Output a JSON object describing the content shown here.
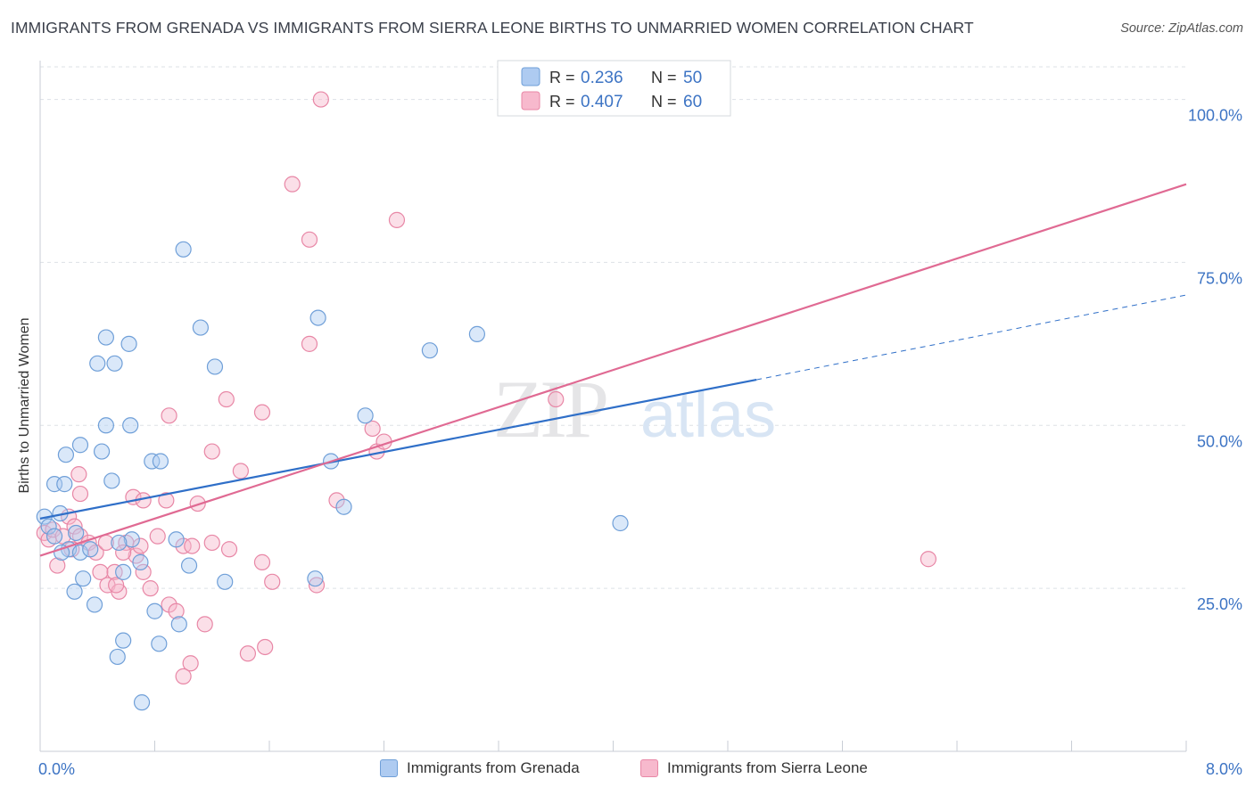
{
  "header": {
    "title": "IMMIGRANTS FROM GRENADA VS IMMIGRANTS FROM SIERRA LEONE BIRTHS TO UNMARRIED WOMEN CORRELATION CHART",
    "source": "Source: ZipAtlas.com"
  },
  "watermark": {
    "zip": "ZIP",
    "atlas": "atlas"
  },
  "colors": {
    "blue_fill": "#aecbf1",
    "blue_stroke": "#6f9fd8",
    "blue_line": "#2f6fc8",
    "pink_fill": "#f7b9cd",
    "pink_stroke": "#e887a6",
    "pink_line": "#e06a93",
    "tick_label": "#3d74c4",
    "grid": "#dde1e6"
  },
  "legend_top": [
    {
      "r_label": "R =",
      "r_value": "0.236",
      "n_label": "N =",
      "n_value": "50"
    },
    {
      "r_label": "R =",
      "r_value": "0.407",
      "n_label": "N =",
      "n_value": "60"
    }
  ],
  "chart_data": {
    "type": "scatter",
    "title": "IMMIGRANTS FROM GRENADA VS IMMIGRANTS FROM SIERRA LEONE BIRTHS TO UNMARRIED WOMEN CORRELATION CHART",
    "xlabel": "",
    "ylabel": "Births to Unmarried Women",
    "xlim": [
      0,
      8
    ],
    "ylim": [
      0,
      105
    ],
    "x_tick_labels": [
      "0.0%",
      "8.0%"
    ],
    "y_ticks": [
      25,
      50,
      75,
      100
    ],
    "y_tick_labels": [
      "25.0%",
      "50.0%",
      "75.0%",
      "100.0%"
    ],
    "grid": true,
    "legend_position": "bottom",
    "series": [
      {
        "name": "Immigrants from Grenada",
        "color": "#aecbf1",
        "trend": {
          "x_start": 0.0,
          "y_start": 35.7,
          "x_solid_end": 5.0,
          "y_solid_end": 57.0,
          "x_dash_end": 8.0,
          "y_dash_end": 70.0
        },
        "points": [
          [
            0.03,
            36.0
          ],
          [
            0.06,
            34.5
          ],
          [
            0.1,
            33.0
          ],
          [
            0.14,
            36.5
          ],
          [
            0.2,
            31.0
          ],
          [
            0.25,
            33.5
          ],
          [
            0.28,
            30.5
          ],
          [
            0.35,
            31.0
          ],
          [
            0.15,
            30.5
          ],
          [
            0.3,
            26.5
          ],
          [
            0.24,
            24.5
          ],
          [
            0.38,
            22.5
          ],
          [
            0.58,
            27.5
          ],
          [
            0.7,
            29.0
          ],
          [
            1.04,
            28.5
          ],
          [
            0.8,
            21.5
          ],
          [
            0.97,
            19.5
          ],
          [
            0.58,
            17.0
          ],
          [
            0.83,
            16.5
          ],
          [
            0.54,
            14.5
          ],
          [
            0.71,
            7.5
          ],
          [
            0.1,
            41.0
          ],
          [
            0.17,
            41.0
          ],
          [
            0.5,
            41.5
          ],
          [
            0.18,
            45.5
          ],
          [
            0.28,
            47.0
          ],
          [
            0.43,
            46.0
          ],
          [
            0.46,
            50.0
          ],
          [
            0.63,
            50.0
          ],
          [
            0.78,
            44.5
          ],
          [
            0.84,
            44.5
          ],
          [
            0.4,
            59.5
          ],
          [
            0.52,
            59.5
          ],
          [
            0.62,
            62.5
          ],
          [
            0.46,
            63.5
          ],
          [
            1.12,
            65.0
          ],
          [
            1.22,
            59.0
          ],
          [
            1.0,
            77.0
          ],
          [
            1.94,
            66.5
          ],
          [
            2.27,
            51.5
          ],
          [
            2.03,
            44.5
          ],
          [
            2.12,
            37.5
          ],
          [
            1.92,
            26.5
          ],
          [
            1.29,
            26.0
          ],
          [
            2.72,
            61.5
          ],
          [
            3.05,
            64.0
          ],
          [
            4.05,
            35.0
          ],
          [
            0.64,
            32.5
          ],
          [
            0.95,
            32.5
          ],
          [
            0.55,
            32.0
          ]
        ]
      },
      {
        "name": "Immigrants from Sierra Leone",
        "color": "#f7b9cd",
        "trend": {
          "x_start": 0.0,
          "y_start": 30.0,
          "x_end": 8.0,
          "y_end": 87.0
        },
        "points": [
          [
            0.03,
            33.5
          ],
          [
            0.06,
            32.5
          ],
          [
            0.09,
            34.0
          ],
          [
            0.12,
            28.5
          ],
          [
            0.16,
            33.0
          ],
          [
            0.2,
            36.0
          ],
          [
            0.24,
            34.5
          ],
          [
            0.28,
            33.0
          ],
          [
            0.22,
            31.0
          ],
          [
            0.34,
            32.0
          ],
          [
            0.39,
            30.5
          ],
          [
            0.42,
            27.5
          ],
          [
            0.47,
            25.5
          ],
          [
            0.52,
            27.5
          ],
          [
            0.55,
            24.5
          ],
          [
            0.53,
            25.5
          ],
          [
            0.6,
            32.0
          ],
          [
            0.67,
            30.0
          ],
          [
            0.72,
            27.5
          ],
          [
            0.77,
            25.0
          ],
          [
            0.82,
            33.0
          ],
          [
            0.9,
            22.5
          ],
          [
            0.95,
            21.5
          ],
          [
            1.0,
            31.5
          ],
          [
            1.06,
            31.5
          ],
          [
            1.1,
            38.0
          ],
          [
            1.15,
            19.5
          ],
          [
            1.2,
            32.0
          ],
          [
            1.32,
            31.0
          ],
          [
            1.55,
            29.0
          ],
          [
            1.62,
            26.0
          ],
          [
            1.2,
            46.0
          ],
          [
            1.05,
            13.5
          ],
          [
            1.0,
            11.5
          ],
          [
            1.45,
            15.0
          ],
          [
            1.57,
            16.0
          ],
          [
            0.28,
            39.5
          ],
          [
            0.27,
            42.5
          ],
          [
            0.65,
            39.0
          ],
          [
            0.72,
            38.5
          ],
          [
            0.88,
            38.5
          ],
          [
            0.9,
            51.5
          ],
          [
            1.3,
            54.0
          ],
          [
            1.55,
            52.0
          ],
          [
            1.4,
            43.0
          ],
          [
            1.88,
            62.5
          ],
          [
            2.07,
            38.5
          ],
          [
            1.93,
            25.5
          ],
          [
            2.35,
            46.0
          ],
          [
            2.32,
            49.5
          ],
          [
            2.4,
            47.5
          ],
          [
            3.6,
            54.0
          ],
          [
            6.2,
            29.5
          ],
          [
            2.49,
            81.5
          ],
          [
            1.76,
            87.0
          ],
          [
            1.88,
            78.5
          ],
          [
            1.96,
            100.0
          ],
          [
            0.46,
            32.0
          ],
          [
            0.58,
            30.5
          ],
          [
            0.7,
            31.5
          ]
        ]
      }
    ]
  }
}
